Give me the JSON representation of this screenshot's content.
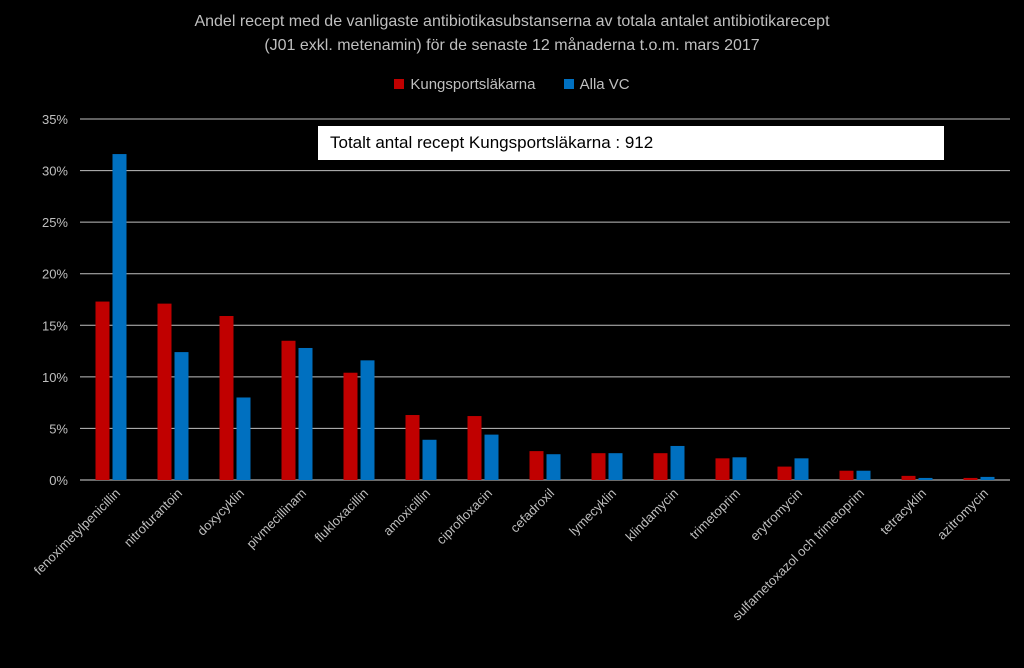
{
  "chart_data": {
    "type": "bar",
    "title": "Andel recept med de vanligaste antibiotikasubstanserna av totala antalet antibiotikarecept",
    "subtitle": "(J01 exkl. metenamin) för de senaste 12 månaderna t.o.m. mars 2017",
    "categories": [
      "fenoximetylpenicillin",
      "nitrofurantoin",
      "doxycyklin",
      "pivmecillinam",
      "flukloxacillin",
      "amoxicillin",
      "ciprofloxacin",
      "cefadroxil",
      "lymecyklin",
      "klindamycin",
      "trimetoprim",
      "erytromycin",
      "sulfametoxazol och trimetoprim",
      "tetracyklin",
      "azitromycin"
    ],
    "series": [
      {
        "name": "Kungsportsläkarna",
        "color": "#c00000",
        "values": [
          17.3,
          17.1,
          15.9,
          13.5,
          10.4,
          6.3,
          6.2,
          2.8,
          2.6,
          2.6,
          2.1,
          1.3,
          0.9,
          0.4,
          0.2
        ]
      },
      {
        "name": "Alla VC",
        "color": "#0070c0",
        "values": [
          31.6,
          12.4,
          8.0,
          12.8,
          11.6,
          3.9,
          4.4,
          2.5,
          2.6,
          3.3,
          2.2,
          2.1,
          0.9,
          0.2,
          0.3
        ]
      }
    ],
    "ylim": [
      0,
      35
    ],
    "yticks": [
      "0%",
      "5%",
      "10%",
      "15%",
      "20%",
      "25%",
      "30%",
      "35%"
    ],
    "ytick_values": [
      0,
      5,
      10,
      15,
      20,
      25,
      30,
      35
    ],
    "grid": true,
    "legend_position": "top-center",
    "annotation": "Totalt antal recept Kungsportsläkarna  : 912"
  }
}
